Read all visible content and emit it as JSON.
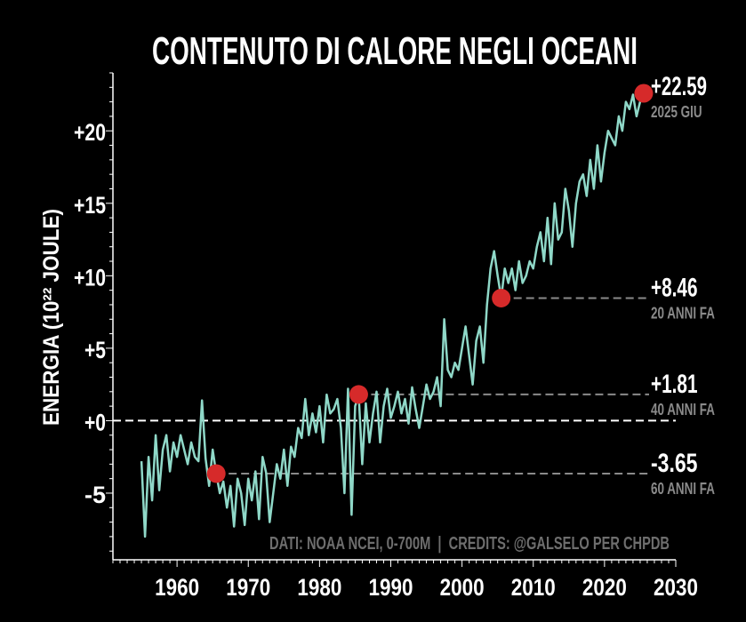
{
  "chart_data": {
    "type": "line",
    "title": "CONTENUTO DI CALORE NEGLI OCEANI",
    "ylabel": "ENERGIA (10²² JOULE)",
    "xlabel": "",
    "credits": "DATI: NOAA NCEI, 0-700M  |  CREDITS: @GALSELO PER CHPDB",
    "xlim": [
      1951,
      2030
    ],
    "ylim": [
      -9.6,
      24
    ],
    "x_ticks": [
      1960,
      1970,
      1980,
      1990,
      2000,
      2010,
      2020,
      2030
    ],
    "x_tick_labels": [
      "1960",
      "1970",
      "1980",
      "1990",
      "2000",
      "2010",
      "2020",
      "2030"
    ],
    "y_ticks": [
      -5,
      0,
      5,
      10,
      15,
      20
    ],
    "y_tick_labels": [
      "-5",
      "+0",
      "+5",
      "+10",
      "+15",
      "+20"
    ],
    "grid": false,
    "colors": {
      "line": "#8fd8c8",
      "marker": "#d62a2a",
      "background": "#000000",
      "text": "#ffffff",
      "muted": "#8a8a8a"
    },
    "series": [
      {
        "points": [
          [
            1955,
            -2.8
          ],
          [
            1955.5,
            -8.0
          ],
          [
            1956,
            -2.5
          ],
          [
            1956.5,
            -5.5
          ],
          [
            1957,
            -1.0
          ],
          [
            1957.5,
            -4.8
          ],
          [
            1958,
            -2.0
          ],
          [
            1958.5,
            -1.0
          ],
          [
            1959,
            -3.5
          ],
          [
            1959.5,
            -1.5
          ],
          [
            1960,
            -2.5
          ],
          [
            1960.5,
            -1.0
          ],
          [
            1961,
            -2.0
          ],
          [
            1961.5,
            -3.0
          ],
          [
            1962,
            -1.5
          ],
          [
            1962.5,
            -2.5
          ],
          [
            1963,
            -2.8
          ],
          [
            1963.5,
            1.4
          ],
          [
            1964,
            -2.6
          ],
          [
            1964.5,
            -4.5
          ],
          [
            1965,
            -2.0
          ],
          [
            1965.5,
            -3.65
          ],
          [
            1966,
            -5.0
          ],
          [
            1966.5,
            -4.2
          ],
          [
            1967,
            -6.0
          ],
          [
            1967.5,
            -4.5
          ],
          [
            1968,
            -7.3
          ],
          [
            1968.5,
            -4.0
          ],
          [
            1969,
            -5.0
          ],
          [
            1969.5,
            -7.2
          ],
          [
            1970,
            -4.0
          ],
          [
            1970.5,
            -5.5
          ],
          [
            1971,
            -3.5
          ],
          [
            1971.5,
            -6.8
          ],
          [
            1972,
            -2.5
          ],
          [
            1972.5,
            -3.6
          ],
          [
            1973,
            -7.0
          ],
          [
            1973.5,
            -5.0
          ],
          [
            1974,
            -3.0
          ],
          [
            1974.5,
            -4.0
          ],
          [
            1975,
            -2.0
          ],
          [
            1975.5,
            -4.5
          ],
          [
            1976,
            -1.8
          ],
          [
            1976.5,
            -2.5
          ],
          [
            1977,
            -0.5
          ],
          [
            1977.5,
            -1.2
          ],
          [
            1978,
            1.5
          ],
          [
            1978.5,
            -1.0
          ],
          [
            1979,
            0.5
          ],
          [
            1979.5,
            -0.8
          ],
          [
            1980,
            1.0
          ],
          [
            1980.5,
            -1.5
          ],
          [
            1981,
            1.8
          ],
          [
            1981.5,
            0.5
          ],
          [
            1982,
            0.8
          ],
          [
            1982.5,
            1.5
          ],
          [
            1983,
            -0.5
          ],
          [
            1983.5,
            -5.0
          ],
          [
            1984,
            2.2
          ],
          [
            1984.5,
            -6.5
          ],
          [
            1985,
            1.0
          ],
          [
            1985.5,
            1.81
          ],
          [
            1986,
            -3.0
          ],
          [
            1986.5,
            1.2
          ],
          [
            1987,
            -1.5
          ],
          [
            1987.5,
            0.5
          ],
          [
            1988,
            2.0
          ],
          [
            1988.5,
            -1.5
          ],
          [
            1989,
            1.0
          ],
          [
            1989.5,
            2.2
          ],
          [
            1990,
            0.2
          ],
          [
            1990.5,
            1.0
          ],
          [
            1991,
            2.0
          ],
          [
            1991.5,
            0.5
          ],
          [
            1992,
            1.5
          ],
          [
            1992.5,
            -0.2
          ],
          [
            1993,
            2.3
          ],
          [
            1993.5,
            0.8
          ],
          [
            1994,
            -0.5
          ],
          [
            1994.5,
            1.0
          ],
          [
            1995,
            2.5
          ],
          [
            1995.5,
            1.5
          ],
          [
            1996,
            2.0
          ],
          [
            1996.5,
            3.0
          ],
          [
            1997,
            1.0
          ],
          [
            1997.5,
            7.0
          ],
          [
            1998,
            3.5
          ],
          [
            1998.5,
            3.0
          ],
          [
            1999,
            4.0
          ],
          [
            1999.5,
            3.5
          ],
          [
            2000,
            5.0
          ],
          [
            2000.5,
            6.5
          ],
          [
            2001,
            4.5
          ],
          [
            2001.5,
            2.5
          ],
          [
            2002,
            5.5
          ],
          [
            2002.5,
            6.5
          ],
          [
            2003,
            4.0
          ],
          [
            2003.5,
            8.0
          ],
          [
            2004,
            10.5
          ],
          [
            2004.5,
            11.7
          ],
          [
            2005,
            10.0
          ],
          [
            2005.5,
            8.46
          ],
          [
            2006,
            10.5
          ],
          [
            2006.5,
            9.5
          ],
          [
            2007,
            10.5
          ],
          [
            2007.5,
            9.0
          ],
          [
            2008,
            11.0
          ],
          [
            2008.5,
            9.5
          ],
          [
            2009,
            10.0
          ],
          [
            2009.5,
            11.0
          ],
          [
            2010,
            10.5
          ],
          [
            2010.5,
            12.0
          ],
          [
            2011,
            13.0
          ],
          [
            2011.5,
            11.0
          ],
          [
            2012,
            14.0
          ],
          [
            2012.5,
            10.8
          ],
          [
            2013,
            15.0
          ],
          [
            2013.5,
            12.5
          ],
          [
            2014,
            13.0
          ],
          [
            2014.5,
            16.0
          ],
          [
            2015,
            14.5
          ],
          [
            2015.5,
            12.0
          ],
          [
            2016,
            15.0
          ],
          [
            2016.5,
            16.5
          ],
          [
            2017,
            17.0
          ],
          [
            2017.5,
            15.5
          ],
          [
            2018,
            18.0
          ],
          [
            2018.5,
            16.0
          ],
          [
            2019,
            19.0
          ],
          [
            2019.5,
            16.5
          ],
          [
            2020,
            18.5
          ],
          [
            2020.5,
            20.0
          ],
          [
            2021,
            19.5
          ],
          [
            2021.5,
            19.0
          ],
          [
            2022,
            21.0
          ],
          [
            2022.5,
            20.0
          ],
          [
            2023,
            22.0
          ],
          [
            2023.5,
            21.5
          ],
          [
            2024,
            22.5
          ],
          [
            2024.5,
            21.0
          ],
          [
            2025,
            22.0
          ],
          [
            2025.5,
            22.59
          ]
        ]
      }
    ],
    "annotations": [
      {
        "x": 2025.5,
        "y": 22.59,
        "value": "+22.59",
        "label": "2025 GIU",
        "guide": false
      },
      {
        "x": 2005.5,
        "y": 8.46,
        "value": "+8.46",
        "label": "20 ANNI FA",
        "guide": true
      },
      {
        "x": 1985.5,
        "y": 1.81,
        "value": "+1.81",
        "label": "40 ANNI FA",
        "guide": true
      },
      {
        "x": 1965.5,
        "y": -3.65,
        "value": "-3.65",
        "label": "60 ANNI FA",
        "guide": true
      }
    ],
    "reference_line": {
      "y": 0
    }
  }
}
